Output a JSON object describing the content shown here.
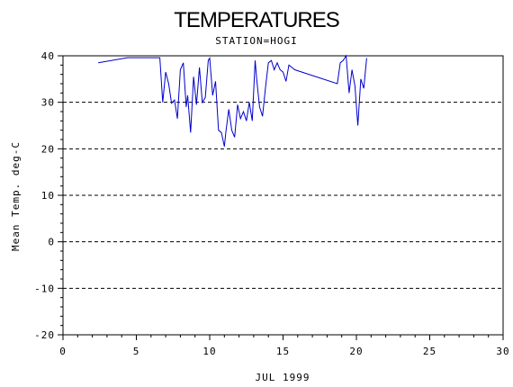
{
  "chart_data": {
    "type": "line",
    "title": "TEMPERATURES",
    "subtitle": "STATION=HOGI",
    "xlabel": "JUL 1999",
    "ylabel": "Mean Temp. deg-C",
    "xlim": [
      0,
      30
    ],
    "ylim": [
      -20,
      40
    ],
    "xticks": [
      "0",
      "5",
      "10",
      "15",
      "20",
      "25",
      "30"
    ],
    "yticks": [
      "-20",
      "-10",
      "0",
      "10",
      "20",
      "30",
      "40"
    ],
    "grid": "horizontal-dashed",
    "series_color": "#0000cc",
    "x": [
      2.4,
      4.4,
      6.6,
      6.8,
      7.0,
      7.2,
      7.4,
      7.6,
      7.8,
      8.0,
      8.2,
      8.4,
      8.5,
      8.7,
      8.9,
      9.1,
      9.3,
      9.5,
      9.7,
      9.9,
      10.0,
      10.2,
      10.4,
      10.6,
      10.8,
      11.0,
      11.1,
      11.3,
      11.5,
      11.7,
      11.9,
      12.1,
      12.3,
      12.5,
      12.7,
      12.9,
      13.1,
      13.2,
      13.4,
      13.6,
      13.8,
      14.0,
      14.2,
      14.4,
      14.6,
      14.8,
      15.0,
      15.2,
      15.4,
      15.6,
      15.8,
      18.7,
      18.9,
      19.1,
      19.3,
      19.5,
      19.7,
      19.9,
      20.1,
      20.3,
      20.5,
      20.7
    ],
    "values": [
      38.5,
      39.6,
      39.6,
      30.0,
      36.5,
      34.0,
      29.8,
      30.5,
      26.5,
      37.0,
      38.5,
      29.0,
      31.5,
      23.5,
      35.5,
      29.5,
      37.5,
      30.0,
      31.0,
      39.0,
      39.5,
      31.5,
      34.5,
      24.0,
      23.5,
      20.5,
      23.5,
      28.5,
      24.0,
      22.5,
      29.5,
      26.5,
      28.0,
      26.0,
      30.0,
      26.0,
      39.0,
      35.0,
      29.0,
      27.0,
      33.0,
      38.5,
      39.0,
      37.0,
      38.5,
      37.0,
      36.5,
      34.5,
      38.0,
      37.5,
      37.0,
      34.0,
      38.5,
      39.0,
      40.0,
      32.0,
      37.0,
      33.5,
      25.0,
      35.0,
      33.0,
      39.5
    ]
  }
}
